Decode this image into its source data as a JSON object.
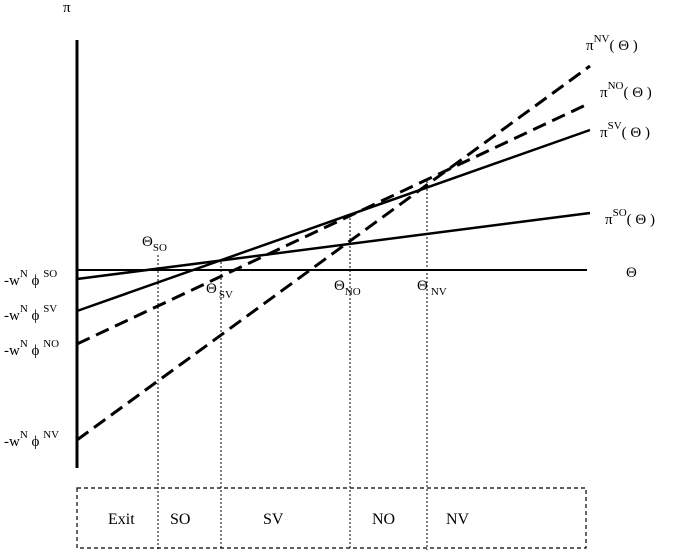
{
  "axes": {
    "y_label": "π",
    "x_label": "Θ"
  },
  "curves": [
    {
      "id": "nv",
      "base": "π",
      "sup": "NV",
      "arg": "( Θ )",
      "style": "dashed"
    },
    {
      "id": "no",
      "base": "π",
      "sup": "NO",
      "arg": "( Θ )",
      "style": "dashed"
    },
    {
      "id": "sv",
      "base": "π",
      "sup": "SV",
      "arg": "( Θ )",
      "style": "solid"
    },
    {
      "id": "so",
      "base": "π",
      "sup": "SO",
      "arg": "( Θ )",
      "style": "solid"
    }
  ],
  "intercepts": [
    {
      "id": "so",
      "pre": "-w",
      "n": "N",
      "phi": " ϕ ",
      "sup": "SO"
    },
    {
      "id": "sv",
      "pre": "-w",
      "n": "N",
      "phi": " ϕ ",
      "sup": "SV"
    },
    {
      "id": "no",
      "pre": "-w",
      "n": "N",
      "phi": " ϕ ",
      "sup": "NO"
    },
    {
      "id": "nv",
      "pre": "-w",
      "n": "N",
      "phi": " ϕ ",
      "sup": "NV"
    }
  ],
  "thresholds": [
    {
      "id": "so",
      "base": "Θ",
      "sub": "SO"
    },
    {
      "id": "sv",
      "base": "Θ",
      "sub": "SV"
    },
    {
      "id": "no",
      "base": "Θ",
      "sub": "NO"
    },
    {
      "id": "nv",
      "base": "Θ",
      "sub": "NV"
    }
  ],
  "regions": [
    "Exit",
    "SO",
    "SV",
    "NO",
    "NV"
  ]
}
